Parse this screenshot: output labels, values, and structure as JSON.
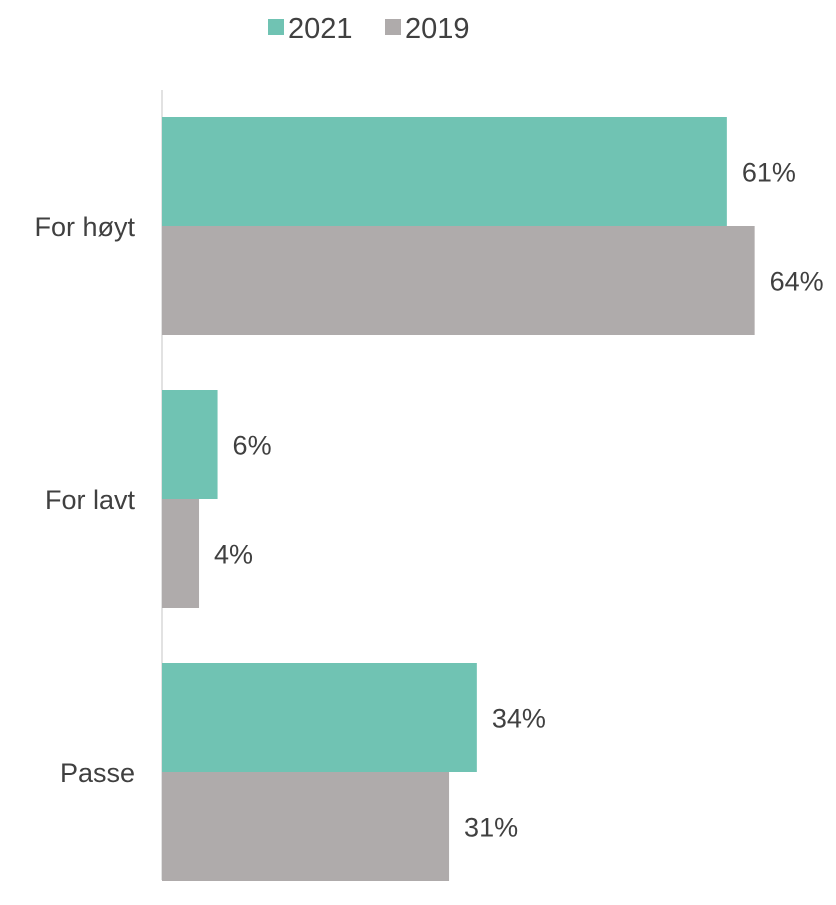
{
  "chart_data": {
    "type": "bar",
    "orientation": "horizontal",
    "categories": [
      "For høyt",
      "For lavt",
      "Passe"
    ],
    "series": [
      {
        "name": "2021",
        "color": "#70c3b3",
        "values": [
          61,
          6,
          34
        ],
        "labels": [
          "61%",
          "6%",
          "34%"
        ]
      },
      {
        "name": "2019",
        "color": "#afabab",
        "values": [
          64,
          4,
          31
        ],
        "labels": [
          "64%",
          "4%",
          "31%"
        ]
      }
    ],
    "xlim": [
      0,
      70
    ],
    "grid": false,
    "legend": "top-center"
  }
}
